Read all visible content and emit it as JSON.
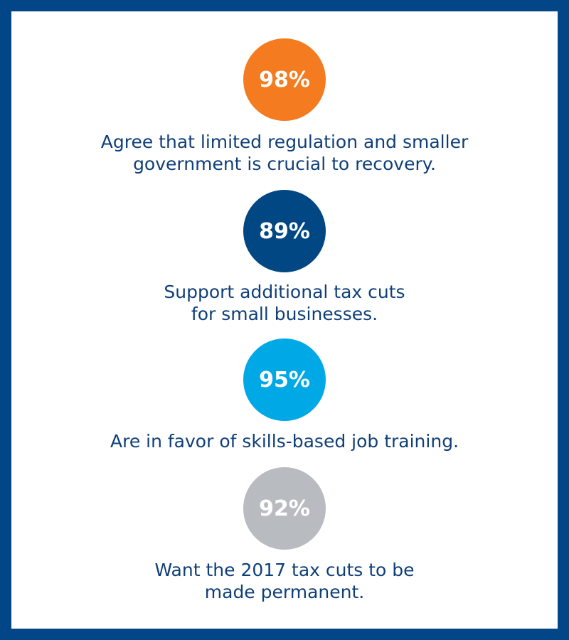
{
  "stats": [
    {
      "value": "98%",
      "caption": "Agree that limited regulation and smaller\ngovernment is crucial to recovery.",
      "color": "#f47b20"
    },
    {
      "value": "89%",
      "caption": "Support additional tax cuts\nfor small businesses.",
      "color": "#004784"
    },
    {
      "value": "95%",
      "caption": "Are in favor of skills-based job training.",
      "color": "#00a8e6"
    },
    {
      "value": "92%",
      "caption": "Want the 2017 tax cuts to be\nmade permanent.",
      "color": "#b8bcc1"
    }
  ],
  "colors": {
    "border": "#034687",
    "text": "#0f3f78",
    "background": "#ffffff"
  }
}
